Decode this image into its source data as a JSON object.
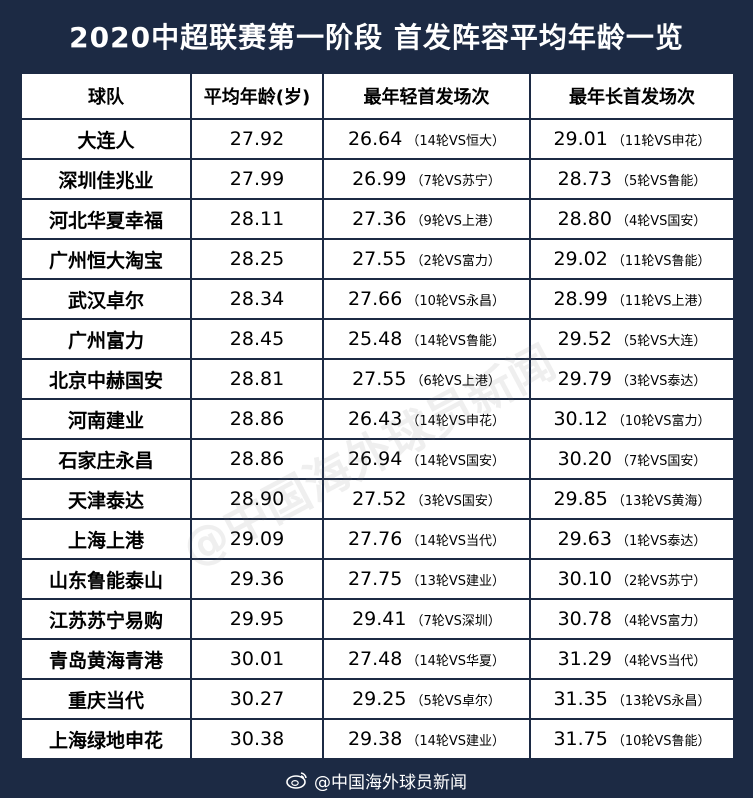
{
  "title": "2020中超联赛第一阶段 首发阵容平均年龄一览",
  "headers": [
    "球队",
    "平均年龄(岁)",
    "最年轻首发场次",
    "最年长首发场次"
  ],
  "rows": [
    {
      "team": "大连人",
      "avg": "27.92",
      "young": "26.64",
      "young_note": "（14轮VS恒大）",
      "old": "29.01",
      "old_note": "（11轮VS申花）"
    },
    {
      "team": "深圳佳兆业",
      "avg": "27.99",
      "young": "26.99",
      "young_note": "（7轮VS苏宁）",
      "old": "28.73",
      "old_note": "（5轮VS鲁能）"
    },
    {
      "team": "河北华夏幸福",
      "avg": "28.11",
      "young": "27.36",
      "young_note": "（9轮VS上港）",
      "old": "28.80",
      "old_note": "（4轮VS国安）"
    },
    {
      "team": "广州恒大淘宝",
      "avg": "28.25",
      "young": "27.55",
      "young_note": "（2轮VS富力）",
      "old": "29.02",
      "old_note": "（11轮VS鲁能）"
    },
    {
      "team": "武汉卓尔",
      "avg": "28.34",
      "young": "27.66",
      "young_note": "（10轮VS永昌）",
      "old": "28.99",
      "old_note": "（11轮VS上港）"
    },
    {
      "team": "广州富力",
      "avg": "28.45",
      "young": "25.48",
      "young_note": "（14轮VS鲁能）",
      "old": "29.52",
      "old_note": "（5轮VS大连）"
    },
    {
      "team": "北京中赫国安",
      "avg": "28.81",
      "young": "27.55",
      "young_note": "（6轮VS上港）",
      "old": "29.79",
      "old_note": "（3轮VS泰达）"
    },
    {
      "team": "河南建业",
      "avg": "28.86",
      "young": "26.43",
      "young_note": "（14轮VS申花）",
      "old": "30.12",
      "old_note": "（10轮VS富力）"
    },
    {
      "team": "石家庄永昌",
      "avg": "28.86",
      "young": "26.94",
      "young_note": "（14轮VS国安）",
      "old": "30.20",
      "old_note": "（7轮VS国安）"
    },
    {
      "team": "天津泰达",
      "avg": "28.90",
      "young": "27.52",
      "young_note": "（3轮VS国安）",
      "old": "29.85",
      "old_note": "（13轮VS黄海）"
    },
    {
      "team": "上海上港",
      "avg": "29.09",
      "young": "27.76",
      "young_note": "（14轮VS当代）",
      "old": "29.63",
      "old_note": "（1轮VS泰达）"
    },
    {
      "team": "山东鲁能泰山",
      "avg": "29.36",
      "young": "27.75",
      "young_note": "（13轮VS建业）",
      "old": "30.10",
      "old_note": "（2轮VS苏宁）"
    },
    {
      "team": "江苏苏宁易购",
      "avg": "29.95",
      "young": "29.41",
      "young_note": "（7轮VS深圳）",
      "old": "30.78",
      "old_note": "（4轮VS富力）"
    },
    {
      "team": "青岛黄海青港",
      "avg": "30.01",
      "young": "27.48",
      "young_note": "（14轮VS华夏）",
      "old": "31.29",
      "old_note": "（4轮VS当代）"
    },
    {
      "team": "重庆当代",
      "avg": "30.27",
      "young": "29.25",
      "young_note": "（5轮VS卓尔）",
      "old": "31.35",
      "old_note": "（13轮VS永昌）"
    },
    {
      "team": "上海绿地申花",
      "avg": "30.38",
      "young": "29.38",
      "young_note": "（14轮VS建业）",
      "old": "31.75",
      "old_note": "（10轮VS鲁能）"
    }
  ],
  "footer": "@中国海外球员新闻",
  "watermark": "@中国海外球员新闻",
  "colors": {
    "background": "#1c2a44",
    "table": "#ffffff",
    "text": "#000000"
  },
  "icons": {
    "footer": "weibo-icon"
  }
}
